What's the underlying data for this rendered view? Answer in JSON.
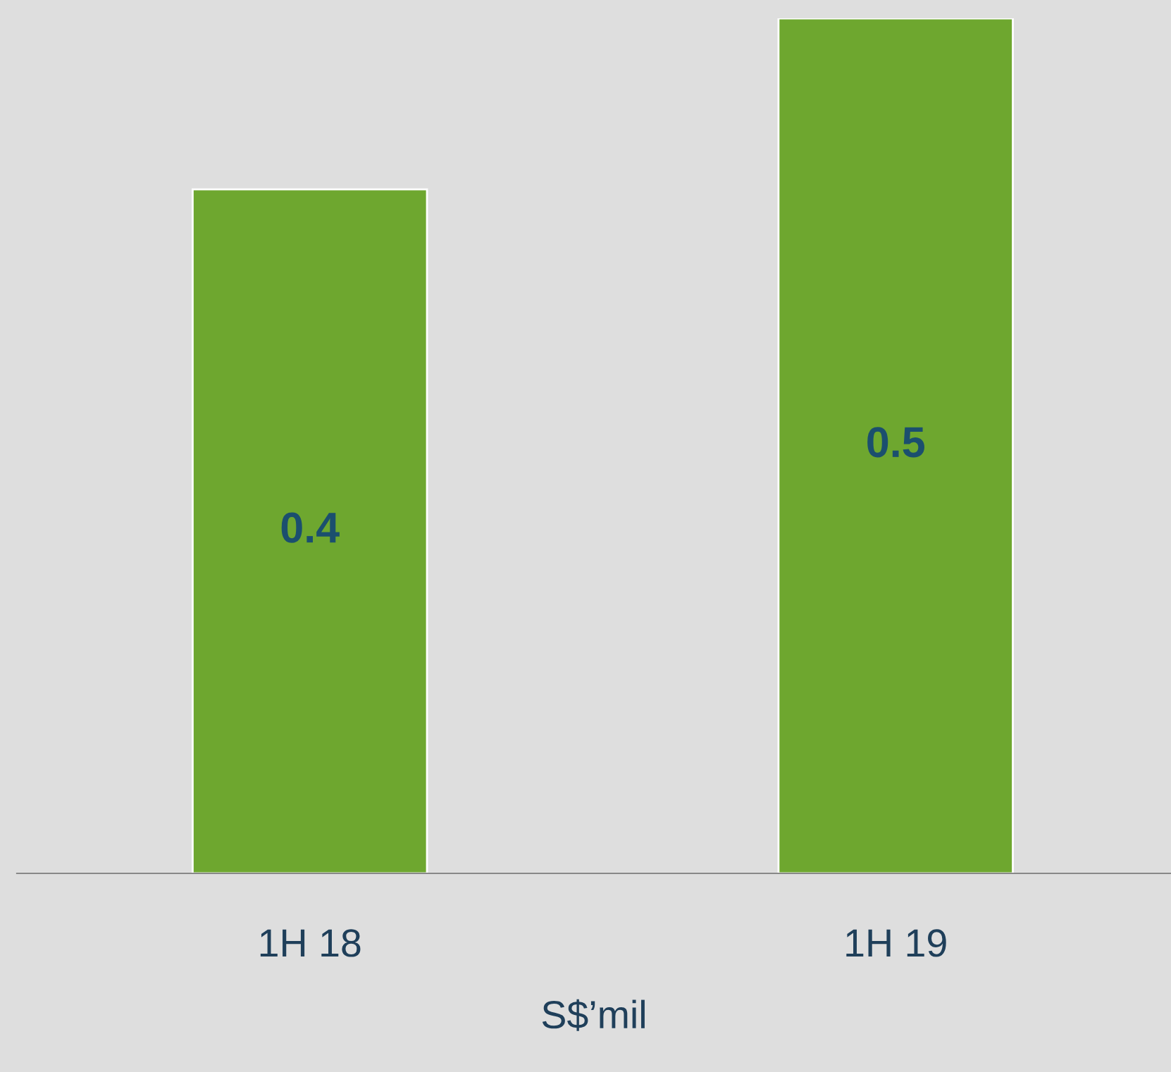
{
  "chart_data": {
    "type": "bar",
    "categories": [
      "1H 18",
      "1H 19"
    ],
    "values": [
      0.4,
      0.5
    ],
    "color": "#6ea72f",
    "xlabel": "S$’mil",
    "data_labels": true,
    "tick_labels": "x",
    "grid": false,
    "legend": false
  }
}
